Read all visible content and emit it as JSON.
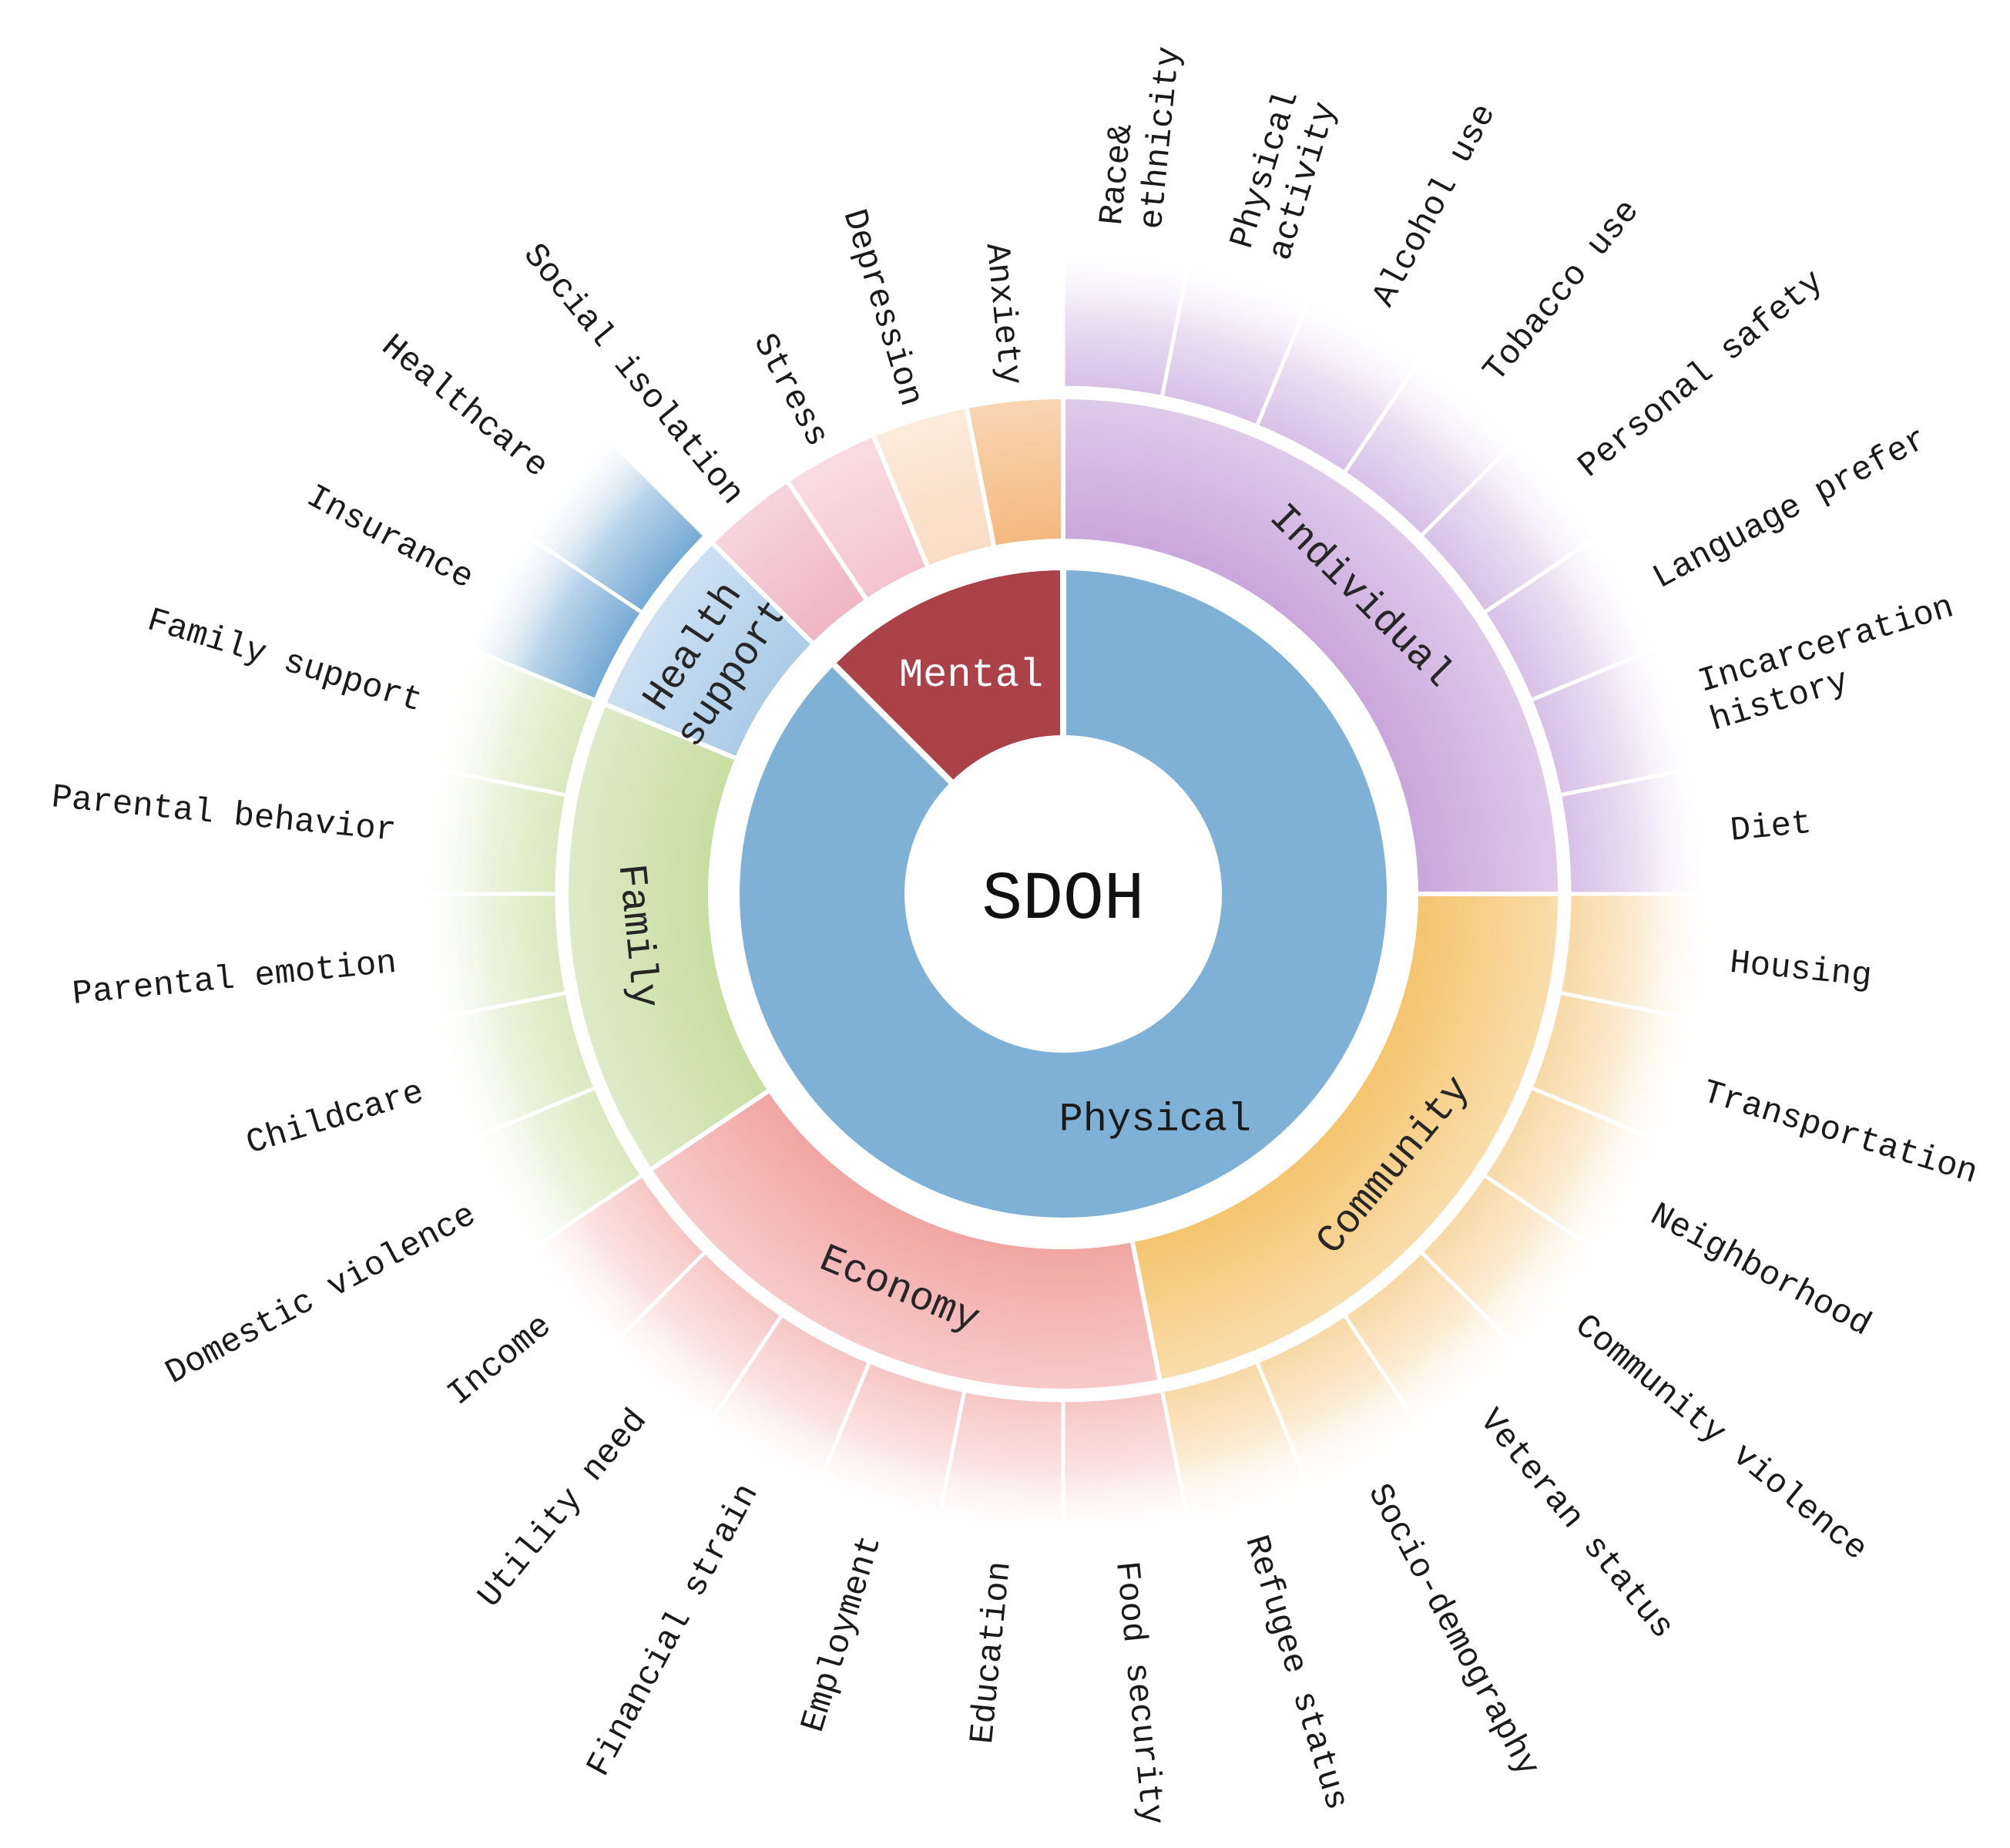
{
  "chart_data": {
    "type": "sunburst",
    "center_label": "SDOH",
    "text_color": "#1a1a1a",
    "legend_position": "none",
    "tree": [
      {
        "name": "Physical",
        "color": "#7FB0D6",
        "label_color": "#1a1a1a",
        "children": [
          {
            "name": "Individual",
            "color": "#C9A6DB",
            "leaf_color": "#D7C0E7",
            "children": [
              {
                "name": "Race&\nethnicity"
              },
              {
                "name": "Physical\nactivity"
              },
              {
                "name": "Alcohol use"
              },
              {
                "name": "Tobacco use"
              },
              {
                "name": "Personal safety"
              },
              {
                "name": "Language prefer"
              },
              {
                "name": "Incarceration\nhistory"
              },
              {
                "name": "Diet"
              }
            ]
          },
          {
            "name": "Community",
            "color": "#F5C46E",
            "leaf_color": "#F8D8A5",
            "children": [
              {
                "name": "Housing"
              },
              {
                "name": "Transportation"
              },
              {
                "name": "Neighborhood"
              },
              {
                "name": "Community violence"
              },
              {
                "name": "Veteran status"
              },
              {
                "name": "Socio-demography"
              },
              {
                "name": "Refugee status"
              }
            ]
          },
          {
            "name": "Economy",
            "color": "#F1A5A3",
            "leaf_color": "#F6C6C3",
            "children": [
              {
                "name": "Food security"
              },
              {
                "name": "Education"
              },
              {
                "name": "Employment"
              },
              {
                "name": "Financial strain"
              },
              {
                "name": "Utility need"
              },
              {
                "name": "Income"
              }
            ]
          },
          {
            "name": "Family",
            "color": "#C8DDA1",
            "leaf_color": "#DAE8BE",
            "children": [
              {
                "name": "Domestic violence"
              },
              {
                "name": "Childcare"
              },
              {
                "name": "Parental emotion"
              },
              {
                "name": "Parental behavior"
              },
              {
                "name": "Family support"
              }
            ]
          },
          {
            "name": "Health\nsupport",
            "color": "#ABCBE8",
            "leaf_color": "#74A9D4",
            "children": [
              {
                "name": "Insurance"
              },
              {
                "name": "Healthcare"
              }
            ]
          }
        ]
      },
      {
        "name": "Mental",
        "color": "#AC4249",
        "label_color": "#ffffff",
        "children": [
          {
            "name": "Social isolation",
            "color": "#EFB5C3"
          },
          {
            "name": "Stress",
            "color": "#F4C4CE"
          },
          {
            "name": "Depression",
            "color": "#F9DCC2"
          },
          {
            "name": "Anxiety",
            "color": "#F4B87E"
          }
        ]
      }
    ]
  }
}
